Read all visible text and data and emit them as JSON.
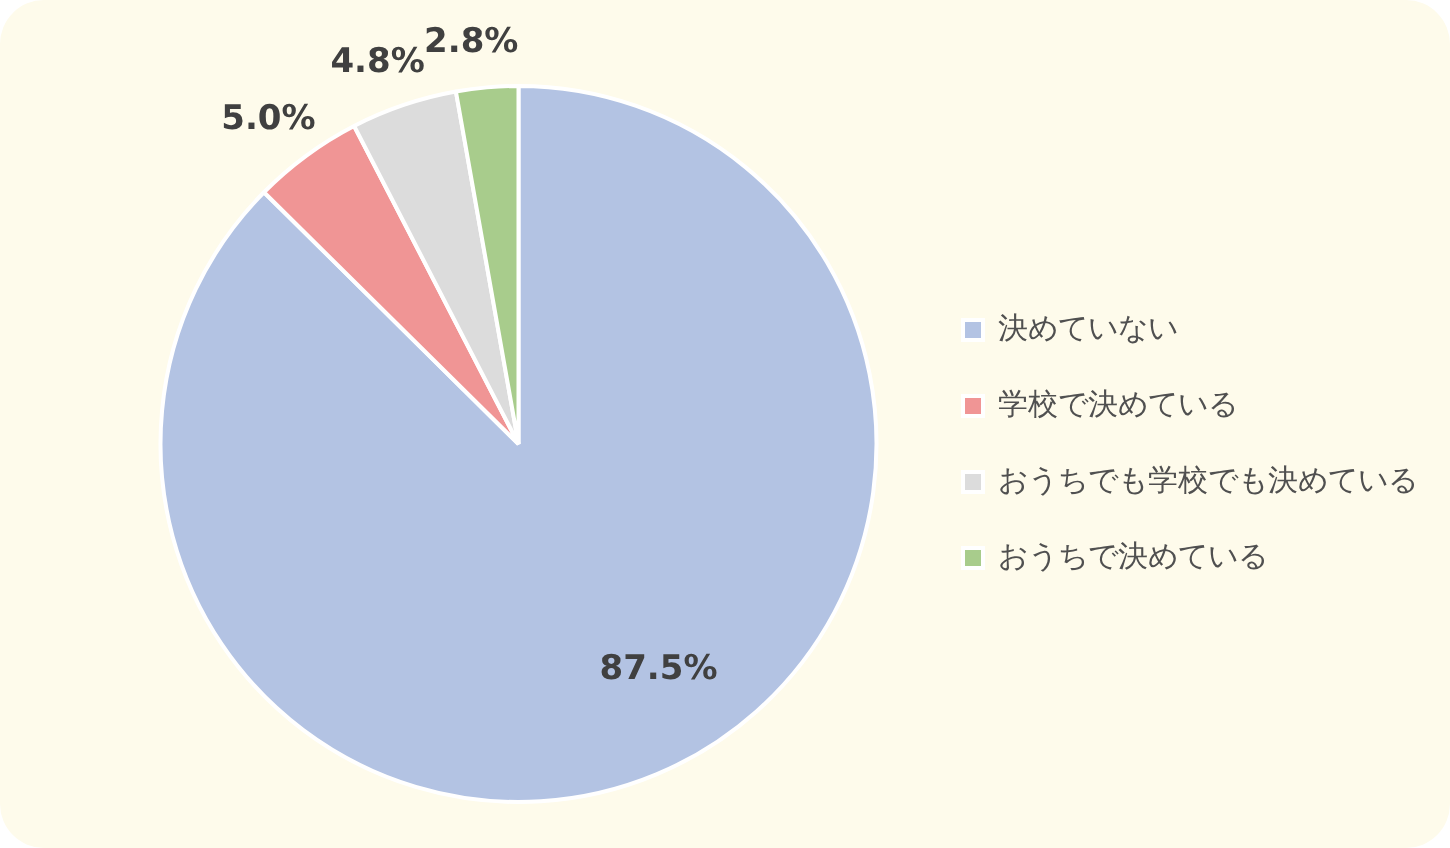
{
  "chart_data": {
    "type": "pie",
    "categories": [
      "決めていない",
      "学校で決めている",
      "おうちでも学校でも決めている",
      "おうちで決めている"
    ],
    "values": [
      87.5,
      5.0,
      4.8,
      2.8
    ],
    "colors": [
      "#b3c3e3",
      "#f09595",
      "#dcdcdc",
      "#a8cc8c"
    ],
    "value_labels": [
      "87.5%",
      "5.0%",
      "4.8%",
      "2.8%"
    ],
    "legend": "right"
  }
}
